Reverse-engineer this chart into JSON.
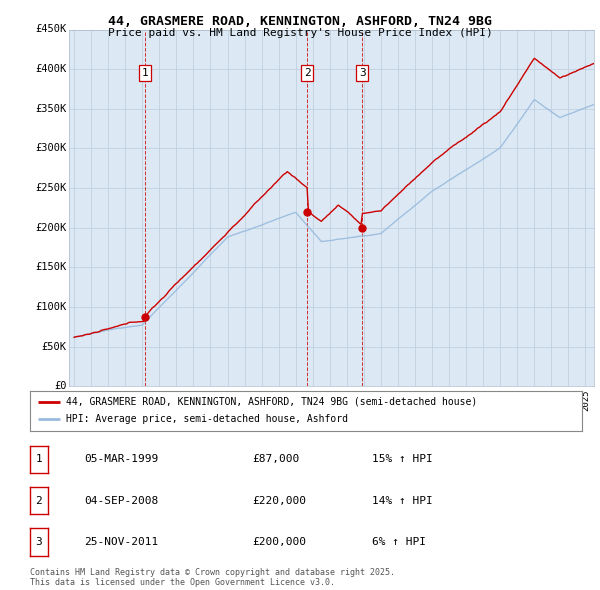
{
  "title_line1": "44, GRASMERE ROAD, KENNINGTON, ASHFORD, TN24 9BG",
  "title_line2": "Price paid vs. HM Land Registry's House Price Index (HPI)",
  "ylabel_ticks": [
    "£0",
    "£50K",
    "£100K",
    "£150K",
    "£200K",
    "£250K",
    "£300K",
    "£350K",
    "£400K",
    "£450K"
  ],
  "ytick_values": [
    0,
    50000,
    100000,
    150000,
    200000,
    250000,
    300000,
    350000,
    400000,
    450000
  ],
  "ylim": [
    0,
    450000
  ],
  "x_start_year": 1995,
  "x_end_year": 2025,
  "legend_line1": "44, GRASMERE ROAD, KENNINGTON, ASHFORD, TN24 9BG (semi-detached house)",
  "legend_line2": "HPI: Average price, semi-detached house, Ashford",
  "red_color": "#cc0000",
  "blue_color": "#99bbdd",
  "plot_bg_color": "#dce9f5",
  "sale_points": [
    {
      "label": "1",
      "date": "05-MAR-1999",
      "price": "£87,000",
      "hpi": "15% ↑ HPI",
      "year": 1999.17,
      "price_val": 87000
    },
    {
      "label": "2",
      "date": "04-SEP-2008",
      "price": "£220,000",
      "hpi": "14% ↑ HPI",
      "year": 2008.67,
      "price_val": 220000
    },
    {
      "label": "3",
      "date": "25-NOV-2011",
      "price": "£200,000",
      "hpi": "6% ↑ HPI",
      "year": 2011.9,
      "price_val": 200000
    }
  ],
  "footer_text": "Contains HM Land Registry data © Crown copyright and database right 2025.\nThis data is licensed under the Open Government Licence v3.0.",
  "background_color": "#ffffff",
  "grid_color": "#c0d0e0"
}
